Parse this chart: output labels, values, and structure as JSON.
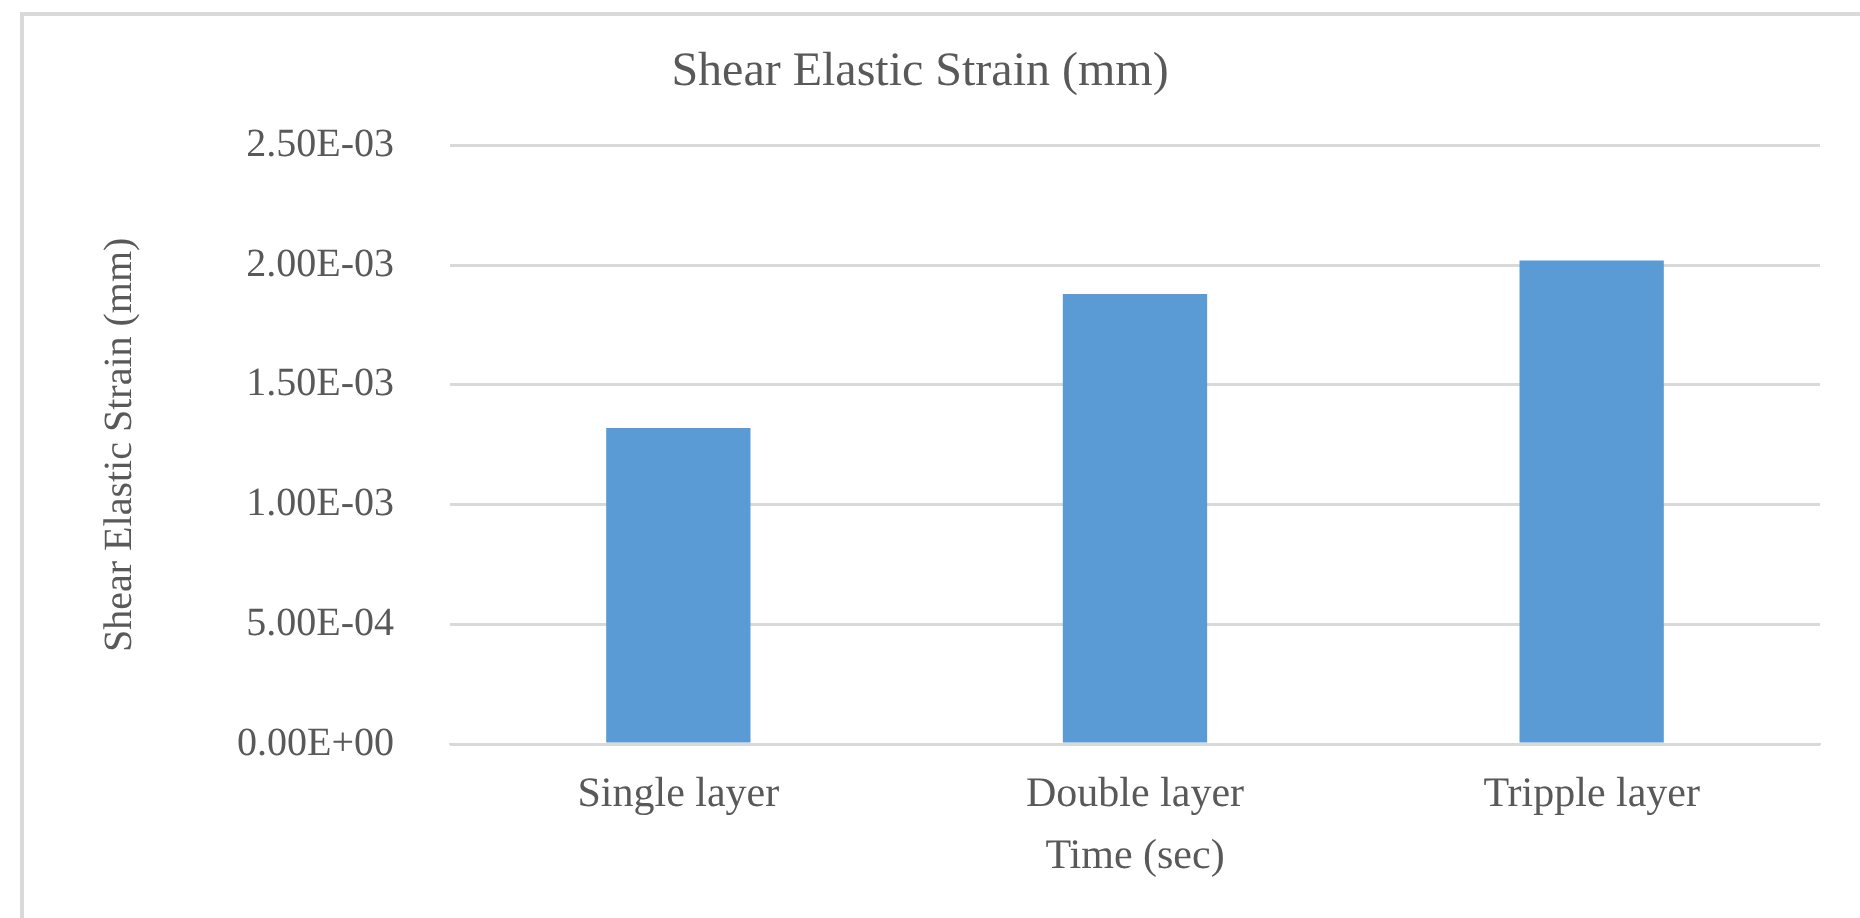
{
  "chart_data": {
    "type": "bar",
    "title": "Shear Elastic Strain (mm)",
    "xlabel": "Time (sec)",
    "ylabel": "Shear Elastic Strain (mm)",
    "categories": [
      "Single layer",
      "Double layer",
      "Tripple layer"
    ],
    "values": [
      0.00132,
      0.00188,
      0.00202
    ],
    "color": "#5b9bd5",
    "ylim": [
      0,
      0.0025
    ],
    "yticks": [
      {
        "value": 0,
        "label": "0.00E+00"
      },
      {
        "value": 0.0005,
        "label": "5.00E-04"
      },
      {
        "value": 0.001,
        "label": "1.00E-03"
      },
      {
        "value": 0.0015,
        "label": "1.50E-03"
      },
      {
        "value": 0.002,
        "label": "2.00E-03"
      },
      {
        "value": 0.0025,
        "label": "2.50E-03"
      }
    ],
    "grid": "y",
    "legend": false
  }
}
